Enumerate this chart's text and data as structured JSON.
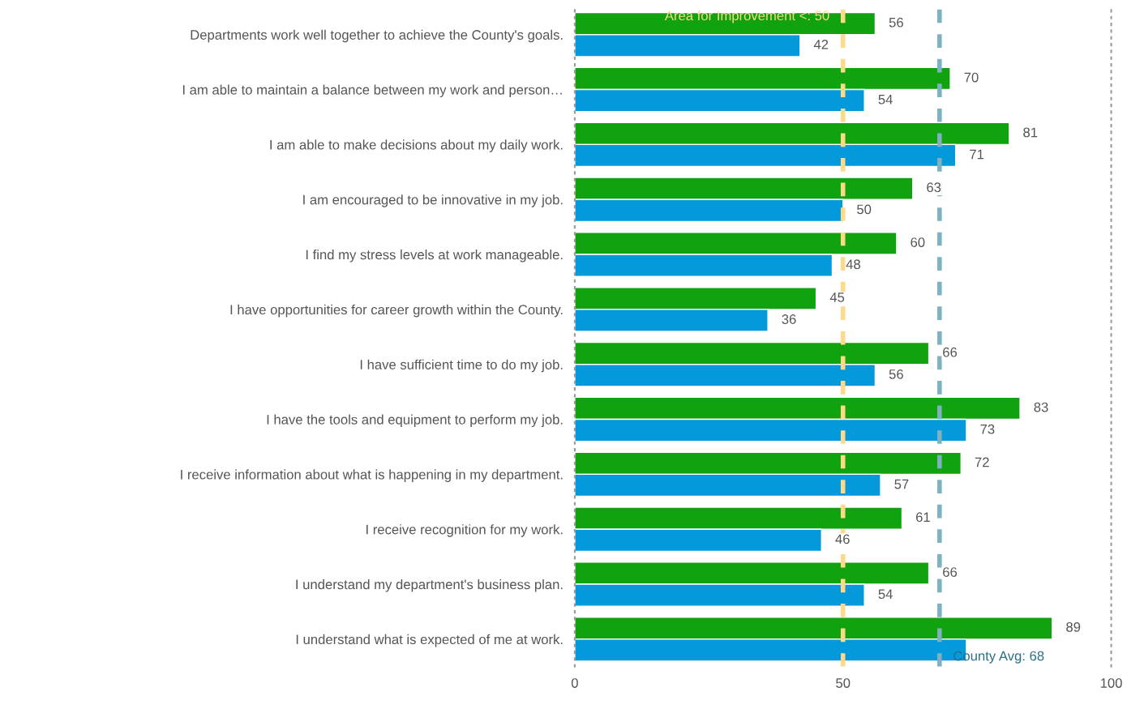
{
  "chart_data": {
    "type": "bar",
    "orientation": "horizontal",
    "categories": [
      "Departments work well together to achieve the County's goals.",
      "I am able to maintain a balance between my work and person…",
      "I am able to make decisions about my daily work.",
      "I am encouraged to be innovative in my job.",
      "I find my stress levels at work manageable.",
      "I have opportunities for career growth within the County.",
      "I have sufficient time to do my job.",
      "I have the tools and equipment to perform my job.",
      "I receive information about what is happening in my department.",
      "I receive recognition for my work.",
      "I understand my department's business plan.",
      "I understand what is expected of me at work."
    ],
    "series": [
      {
        "color": "#10a30f",
        "values": [
          56,
          70,
          81,
          63,
          60,
          45,
          66,
          83,
          72,
          61,
          66,
          89
        ],
        "value_labels": [
          "56",
          "70",
          "81",
          "63",
          "60",
          "45",
          "66",
          "83",
          "72",
          "61",
          "66",
          "89"
        ]
      },
      {
        "color": "#0399db",
        "values": [
          42,
          54,
          71,
          50,
          48,
          36,
          56,
          73,
          57,
          46,
          54,
          73
        ],
        "value_labels": [
          "42",
          "54",
          "71",
          "50",
          "48",
          "36",
          "56",
          "73",
          "57",
          "46",
          "54",
          null
        ]
      }
    ],
    "xlim": [
      0,
      100
    ],
    "xticks": [
      0,
      50,
      100
    ],
    "grid": false,
    "legend": false,
    "ref_lines": [
      {
        "axis": "x",
        "value": 50,
        "label": "Area for Improvement <: 50",
        "color": "#ffd98a",
        "line_style": "dashed"
      },
      {
        "axis": "x",
        "value": 68,
        "label": "County Avg: 68",
        "color": "#7fb2c0",
        "line_style": "dashed"
      }
    ]
  }
}
